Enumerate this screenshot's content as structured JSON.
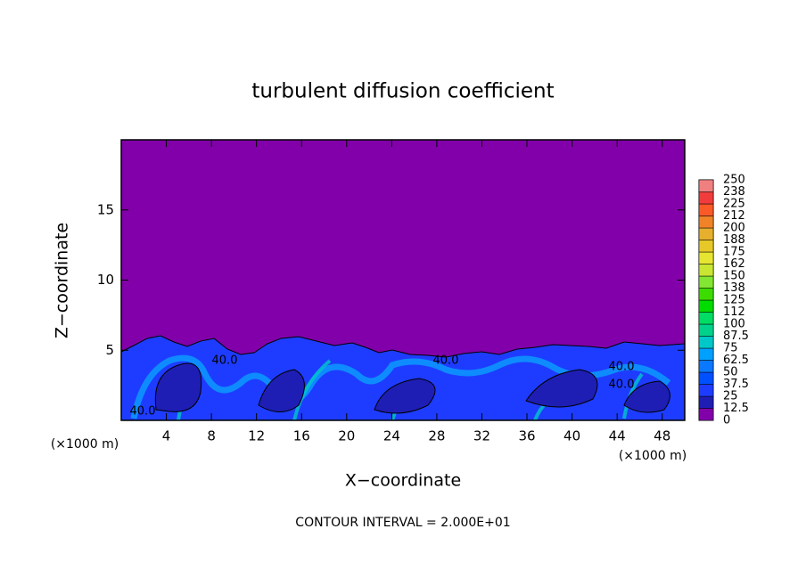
{
  "chart_data": {
    "type": "contour",
    "title": "turbulent diffusion coefficient",
    "xlabel": "X−coordinate",
    "ylabel": "Z−coordinate",
    "xunits": "(×1000 m)",
    "yunits": "(×1000 m)",
    "xlim": [
      0,
      50
    ],
    "ylim": [
      0,
      20
    ],
    "xticks": [
      4,
      8,
      12,
      16,
      20,
      24,
      28,
      32,
      36,
      40,
      44,
      48
    ],
    "yticks": [
      5,
      10,
      15
    ],
    "contour_labels": [
      "40.0",
      "40.0",
      "40.0",
      "40.0",
      "40.0"
    ],
    "footnote": "CONTOUR INTERVAL = 2.000E+01",
    "colorbar": {
      "levels": [
        0,
        12.5,
        25,
        37.5,
        50,
        62.5,
        75,
        87.5,
        100,
        112,
        125,
        138,
        150,
        162,
        175,
        188,
        200,
        212,
        225,
        238,
        250
      ],
      "colors": [
        "#8200aa",
        "#1e1eb4",
        "#1e3cff",
        "#0050ff",
        "#0a78ff",
        "#00a0ff",
        "#00c8c8",
        "#00d28c",
        "#00dc64",
        "#00dc00",
        "#3cdc00",
        "#82e632",
        "#c8e632",
        "#e6e632",
        "#e6c828",
        "#e6af2d",
        "#f08228",
        "#fa5a28",
        "#f03c3c",
        "#f08080"
      ]
    }
  }
}
